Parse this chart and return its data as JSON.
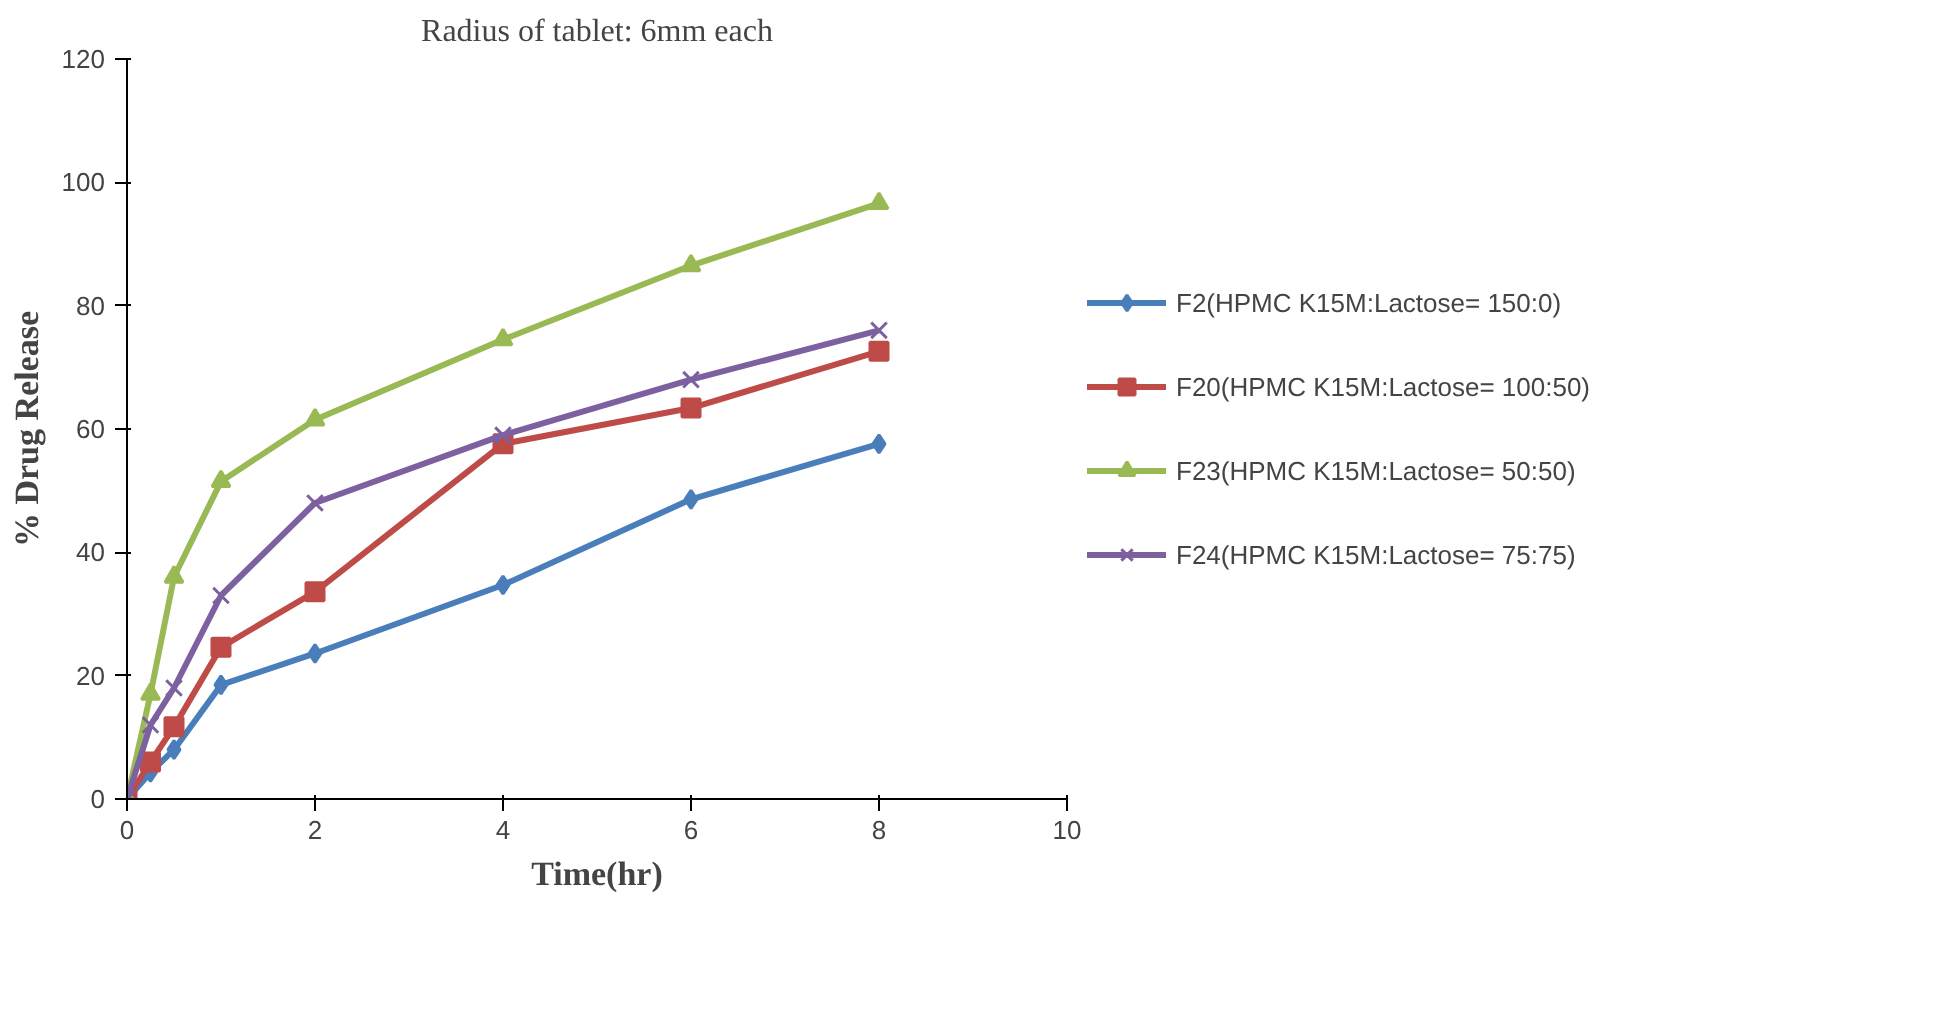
{
  "chart_data": {
    "type": "line",
    "title": "Radius of tablet: 6mm each",
    "xlabel": "Time(hr)",
    "ylabel": "% Drug Release",
    "x": [
      0,
      0.25,
      0.5,
      1,
      2,
      4,
      6,
      8
    ],
    "xlim": [
      0,
      10
    ],
    "xticks": [
      0,
      2,
      4,
      6,
      8,
      10
    ],
    "ylim": [
      0,
      120
    ],
    "yticks": [
      0,
      20,
      40,
      60,
      80,
      100,
      120
    ],
    "grid": false,
    "legend": "right",
    "series": [
      {
        "name": "F2(HPMC K15M:Lactose= 150:0)",
        "color": "#4a7ebb",
        "marker": "diamond",
        "values": [
          0,
          4.3,
          8,
          18.5,
          23.6,
          34.7,
          48.6,
          57.6
        ]
      },
      {
        "name": "F20(HPMC K15M:Lactose= 100:50)",
        "color": "#be4b48",
        "marker": "square",
        "values": [
          0,
          6,
          11.7,
          24.6,
          33.6,
          57.6,
          63.4,
          72.6
        ]
      },
      {
        "name": "F23(HPMC K15M:Lactose= 50:50)",
        "color": "#98b954",
        "marker": "triangle",
        "values": [
          0,
          17,
          36,
          51.5,
          61.5,
          74.5,
          86.5,
          96.6
        ]
      },
      {
        "name": "F24(HPMC K15M:Lactose= 75:75)",
        "color": "#7d60a0",
        "marker": "x",
        "values": [
          0,
          12,
          18,
          33,
          48,
          59,
          68,
          76
        ]
      }
    ]
  }
}
